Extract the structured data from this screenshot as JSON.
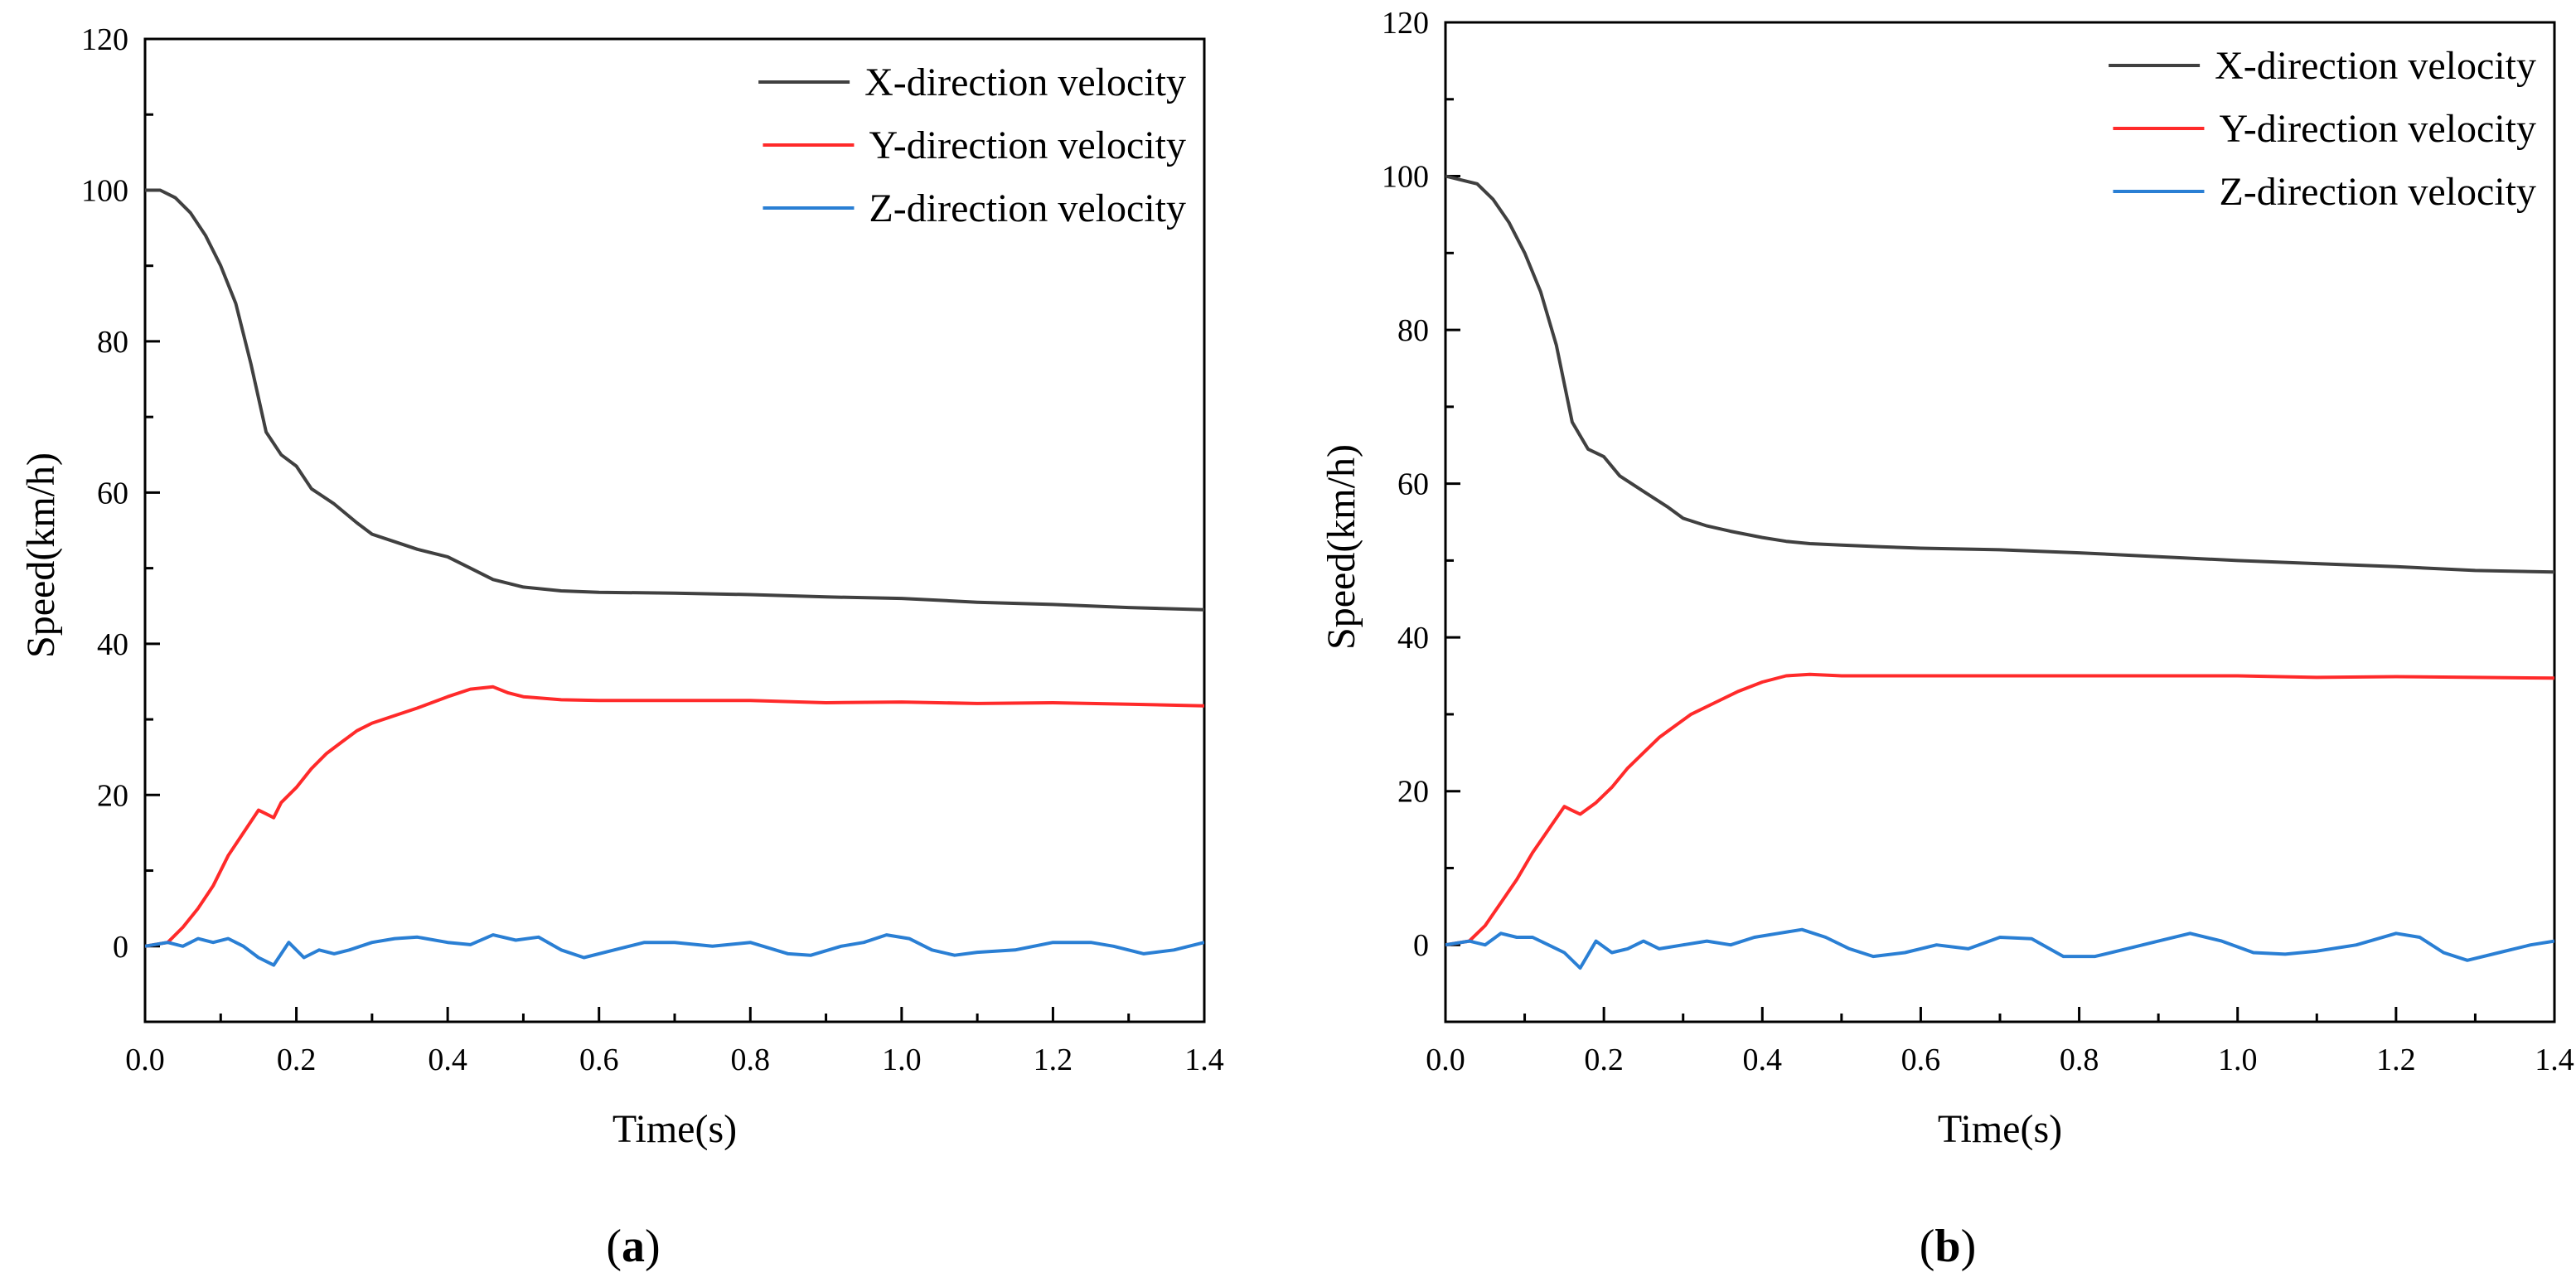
{
  "chart_data": [
    {
      "type": "line",
      "panel_label": "a",
      "xlabel": "Time(s)",
      "ylabel": "Speed(km/h)",
      "xlim": [
        0,
        1.4
      ],
      "ylim": [
        -10,
        120
      ],
      "xticks": [
        "0.0",
        "0.2",
        "0.4",
        "0.6",
        "0.8",
        "1.0",
        "1.2",
        "1.4"
      ],
      "yticks": [
        "0",
        "20",
        "40",
        "60",
        "80",
        "100",
        "120"
      ],
      "legend_position": "top-right",
      "series": [
        {
          "name": "X-direction velocity",
          "color": "#404040",
          "points": [
            [
              0.0,
              100
            ],
            [
              0.02,
              100
            ],
            [
              0.04,
              99
            ],
            [
              0.06,
              97
            ],
            [
              0.08,
              94
            ],
            [
              0.1,
              90
            ],
            [
              0.12,
              85
            ],
            [
              0.14,
              77
            ],
            [
              0.16,
              68
            ],
            [
              0.18,
              65
            ],
            [
              0.2,
              63.5
            ],
            [
              0.22,
              60.5
            ],
            [
              0.25,
              58.5
            ],
            [
              0.28,
              56
            ],
            [
              0.3,
              54.5
            ],
            [
              0.33,
              53.5
            ],
            [
              0.36,
              52.5
            ],
            [
              0.4,
              51.5
            ],
            [
              0.43,
              50
            ],
            [
              0.46,
              48.5
            ],
            [
              0.5,
              47.5
            ],
            [
              0.55,
              47
            ],
            [
              0.6,
              46.8
            ],
            [
              0.7,
              46.7
            ],
            [
              0.8,
              46.5
            ],
            [
              0.9,
              46.2
            ],
            [
              1.0,
              46
            ],
            [
              1.1,
              45.5
            ],
            [
              1.2,
              45.2
            ],
            [
              1.3,
              44.8
            ],
            [
              1.4,
              44.5
            ]
          ]
        },
        {
          "name": "Y-direction velocity",
          "color": "#ff2a2a",
          "points": [
            [
              0.0,
              0
            ],
            [
              0.03,
              0.5
            ],
            [
              0.05,
              2.5
            ],
            [
              0.07,
              5
            ],
            [
              0.09,
              8
            ],
            [
              0.11,
              12
            ],
            [
              0.13,
              15
            ],
            [
              0.15,
              18
            ],
            [
              0.16,
              17.5
            ],
            [
              0.17,
              17
            ],
            [
              0.18,
              19
            ],
            [
              0.2,
              21
            ],
            [
              0.22,
              23.5
            ],
            [
              0.24,
              25.5
            ],
            [
              0.26,
              27
            ],
            [
              0.28,
              28.5
            ],
            [
              0.3,
              29.5
            ],
            [
              0.33,
              30.5
            ],
            [
              0.36,
              31.5
            ],
            [
              0.4,
              33
            ],
            [
              0.43,
              34
            ],
            [
              0.46,
              34.3
            ],
            [
              0.48,
              33.5
            ],
            [
              0.5,
              33
            ],
            [
              0.55,
              32.6
            ],
            [
              0.6,
              32.5
            ],
            [
              0.7,
              32.5
            ],
            [
              0.8,
              32.5
            ],
            [
              0.9,
              32.2
            ],
            [
              1.0,
              32.3
            ],
            [
              1.1,
              32.1
            ],
            [
              1.2,
              32.2
            ],
            [
              1.3,
              32
            ],
            [
              1.4,
              31.8
            ]
          ]
        },
        {
          "name": "Z-direction velocity",
          "color": "#2a7fd4",
          "points": [
            [
              0.0,
              0
            ],
            [
              0.03,
              0.5
            ],
            [
              0.05,
              0
            ],
            [
              0.07,
              1
            ],
            [
              0.09,
              0.5
            ],
            [
              0.11,
              1
            ],
            [
              0.13,
              0
            ],
            [
              0.15,
              -1.5
            ],
            [
              0.17,
              -2.5
            ],
            [
              0.19,
              0.5
            ],
            [
              0.21,
              -1.5
            ],
            [
              0.23,
              -0.5
            ],
            [
              0.25,
              -1
            ],
            [
              0.27,
              -0.5
            ],
            [
              0.3,
              0.5
            ],
            [
              0.33,
              1
            ],
            [
              0.36,
              1.2
            ],
            [
              0.4,
              0.5
            ],
            [
              0.43,
              0.2
            ],
            [
              0.46,
              1.5
            ],
            [
              0.49,
              0.8
            ],
            [
              0.52,
              1.2
            ],
            [
              0.55,
              -0.5
            ],
            [
              0.58,
              -1.5
            ],
            [
              0.62,
              -0.5
            ],
            [
              0.66,
              0.5
            ],
            [
              0.7,
              0.5
            ],
            [
              0.75,
              0
            ],
            [
              0.8,
              0.5
            ],
            [
              0.85,
              -1
            ],
            [
              0.88,
              -1.2
            ],
            [
              0.92,
              0
            ],
            [
              0.95,
              0.5
            ],
            [
              0.98,
              1.5
            ],
            [
              1.01,
              1
            ],
            [
              1.04,
              -0.5
            ],
            [
              1.07,
              -1.2
            ],
            [
              1.1,
              -0.8
            ],
            [
              1.15,
              -0.5
            ],
            [
              1.2,
              0.5
            ],
            [
              1.25,
              0.5
            ],
            [
              1.28,
              0
            ],
            [
              1.32,
              -1
            ],
            [
              1.36,
              -0.5
            ],
            [
              1.4,
              0.5
            ]
          ]
        }
      ]
    },
    {
      "type": "line",
      "panel_label": "b",
      "xlabel": "Time(s)",
      "ylabel": "Speed(km/h)",
      "xlim": [
        0,
        1.4
      ],
      "ylim": [
        -10,
        120
      ],
      "xticks": [
        "0.0",
        "0.2",
        "0.4",
        "0.6",
        "0.8",
        "1.0",
        "1.2",
        "1.4"
      ],
      "yticks": [
        "0",
        "20",
        "40",
        "60",
        "80",
        "100",
        "120"
      ],
      "legend_position": "top-right",
      "series": [
        {
          "name": "X-direction velocity",
          "color": "#404040",
          "points": [
            [
              0.0,
              100
            ],
            [
              0.02,
              99.5
            ],
            [
              0.04,
              99
            ],
            [
              0.06,
              97
            ],
            [
              0.08,
              94
            ],
            [
              0.1,
              90
            ],
            [
              0.12,
              85
            ],
            [
              0.14,
              78
            ],
            [
              0.16,
              68
            ],
            [
              0.18,
              64.5
            ],
            [
              0.2,
              63.5
            ],
            [
              0.22,
              61
            ],
            [
              0.25,
              59
            ],
            [
              0.28,
              57
            ],
            [
              0.3,
              55.5
            ],
            [
              0.33,
              54.5
            ],
            [
              0.36,
              53.8
            ],
            [
              0.4,
              53
            ],
            [
              0.43,
              52.5
            ],
            [
              0.46,
              52.2
            ],
            [
              0.5,
              52
            ],
            [
              0.55,
              51.8
            ],
            [
              0.6,
              51.6
            ],
            [
              0.7,
              51.4
            ],
            [
              0.8,
              51
            ],
            [
              0.9,
              50.5
            ],
            [
              1.0,
              50
            ],
            [
              1.1,
              49.6
            ],
            [
              1.2,
              49.2
            ],
            [
              1.3,
              48.7
            ],
            [
              1.4,
              48.5
            ]
          ]
        },
        {
          "name": "Y-direction velocity",
          "color": "#ff2a2a",
          "points": [
            [
              0.0,
              0
            ],
            [
              0.03,
              0.5
            ],
            [
              0.05,
              2.5
            ],
            [
              0.07,
              5.5
            ],
            [
              0.09,
              8.5
            ],
            [
              0.11,
              12
            ],
            [
              0.13,
              15
            ],
            [
              0.15,
              18
            ],
            [
              0.16,
              17.5
            ],
            [
              0.17,
              17
            ],
            [
              0.19,
              18.5
            ],
            [
              0.21,
              20.5
            ],
            [
              0.23,
              23
            ],
            [
              0.25,
              25
            ],
            [
              0.27,
              27
            ],
            [
              0.29,
              28.5
            ],
            [
              0.31,
              30
            ],
            [
              0.34,
              31.5
            ],
            [
              0.37,
              33
            ],
            [
              0.4,
              34.2
            ],
            [
              0.43,
              35
            ],
            [
              0.46,
              35.2
            ],
            [
              0.5,
              35
            ],
            [
              0.6,
              35
            ],
            [
              0.7,
              35
            ],
            [
              0.8,
              35
            ],
            [
              0.9,
              35
            ],
            [
              1.0,
              35
            ],
            [
              1.1,
              34.8
            ],
            [
              1.2,
              34.9
            ],
            [
              1.3,
              34.8
            ],
            [
              1.4,
              34.7
            ]
          ]
        },
        {
          "name": "Z-direction velocity",
          "color": "#2a7fd4",
          "points": [
            [
              0.0,
              0
            ],
            [
              0.03,
              0.5
            ],
            [
              0.05,
              0
            ],
            [
              0.07,
              1.5
            ],
            [
              0.09,
              1
            ],
            [
              0.11,
              1
            ],
            [
              0.13,
              0
            ],
            [
              0.15,
              -1
            ],
            [
              0.17,
              -3
            ],
            [
              0.19,
              0.5
            ],
            [
              0.21,
              -1
            ],
            [
              0.23,
              -0.5
            ],
            [
              0.25,
              0.5
            ],
            [
              0.27,
              -0.5
            ],
            [
              0.3,
              0
            ],
            [
              0.33,
              0.5
            ],
            [
              0.36,
              0
            ],
            [
              0.39,
              1
            ],
            [
              0.42,
              1.5
            ],
            [
              0.45,
              2
            ],
            [
              0.48,
              1
            ],
            [
              0.51,
              -0.5
            ],
            [
              0.54,
              -1.5
            ],
            [
              0.58,
              -1
            ],
            [
              0.62,
              0
            ],
            [
              0.66,
              -0.5
            ],
            [
              0.7,
              1
            ],
            [
              0.74,
              0.8
            ],
            [
              0.78,
              -1.5
            ],
            [
              0.82,
              -1.5
            ],
            [
              0.86,
              -0.5
            ],
            [
              0.9,
              0.5
            ],
            [
              0.94,
              1.5
            ],
            [
              0.98,
              0.5
            ],
            [
              1.02,
              -1
            ],
            [
              1.06,
              -1.2
            ],
            [
              1.1,
              -0.8
            ],
            [
              1.15,
              0
            ],
            [
              1.2,
              1.5
            ],
            [
              1.23,
              1
            ],
            [
              1.26,
              -1
            ],
            [
              1.29,
              -2
            ],
            [
              1.33,
              -1
            ],
            [
              1.37,
              0
            ],
            [
              1.4,
              0.5
            ]
          ]
        }
      ]
    }
  ]
}
